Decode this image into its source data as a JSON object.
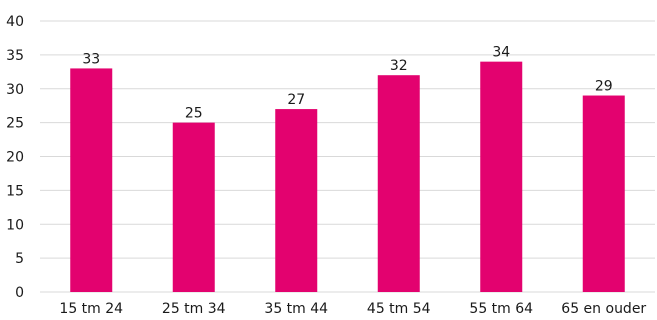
{
  "chart_data": {
    "type": "bar",
    "categories": [
      "15 tm 24",
      "25 tm 34",
      "35 tm 44",
      "45 tm 54",
      "55 tm 64",
      "65 en ouder"
    ],
    "values": [
      33,
      25,
      27,
      32,
      34,
      29
    ],
    "title": "",
    "xlabel": "",
    "ylabel": "",
    "ylim": [
      0,
      40
    ],
    "yticks": [
      0,
      5,
      10,
      15,
      20,
      25,
      30,
      35,
      40
    ],
    "grid": true,
    "legend": "none",
    "bar_color": "#e3026f",
    "grid_color": "#d9d9d9"
  }
}
